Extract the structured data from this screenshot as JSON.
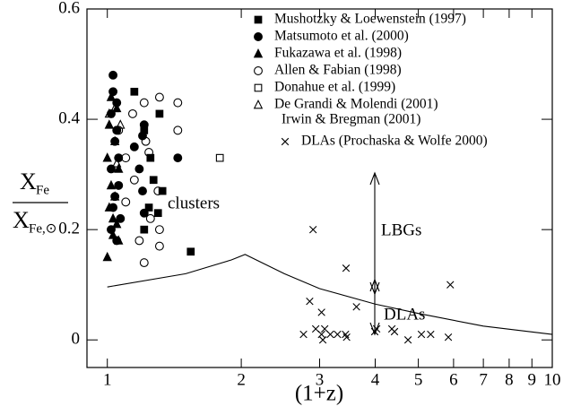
{
  "chart_data": {
    "type": "scatter",
    "xlabel": "(1+z)",
    "ylabel": {
      "numerator": "X",
      "numerator_sub": "Fe",
      "denominator": "X",
      "denominator_sub": "Fe,⊙"
    },
    "xscale": "log",
    "xlim": [
      0.9,
      10
    ],
    "ylim": [
      -0.05,
      0.6
    ],
    "xticks": [
      1,
      2,
      3,
      4,
      5,
      6,
      7,
      8,
      9,
      10
    ],
    "yticks": [
      0,
      0.2,
      0.4,
      0.6
    ],
    "legend": "upper right",
    "series": [
      {
        "name": "Mushotzky & Loewenstein (1997)",
        "marker": "square",
        "filled": true,
        "x": [
          1.15,
          1.31,
          1.21,
          1.25,
          1.33,
          1.3,
          1.24,
          1.54,
          1.27,
          1.21
        ],
        "values": [
          0.45,
          0.41,
          0.38,
          0.33,
          0.27,
          0.23,
          0.24,
          0.16,
          0.29,
          0.2
        ]
      },
      {
        "name": "Matsumoto et al. (2000)",
        "marker": "circle",
        "filled": true,
        "x": [
          1.03,
          1.03,
          1.05,
          1.02,
          1.05,
          1.04,
          1.06,
          1.02,
          1.06,
          1.04,
          1.03,
          1.07,
          1.02,
          1.05,
          1.15,
          1.18,
          1.2,
          1.21,
          1.21,
          1.2,
          1.44
        ],
        "values": [
          0.48,
          0.45,
          0.43,
          0.41,
          0.38,
          0.36,
          0.33,
          0.31,
          0.28,
          0.26,
          0.24,
          0.22,
          0.2,
          0.18,
          0.35,
          0.31,
          0.27,
          0.23,
          0.39,
          0.37,
          0.33
        ]
      },
      {
        "name": "Fukazawa et al. (1998)",
        "marker": "triangle",
        "filled": true,
        "x": [
          1.0,
          1.03,
          1.05,
          1.01,
          1.04,
          1.02,
          1.06,
          1.0,
          1.04,
          1.01,
          1.05,
          1.02,
          1.06,
          1.03
        ],
        "values": [
          0.15,
          0.19,
          0.21,
          0.24,
          0.26,
          0.28,
          0.31,
          0.33,
          0.36,
          0.39,
          0.42,
          0.44,
          0.18,
          0.22
        ]
      },
      {
        "name": "Allen & Fabian (1998)",
        "marker": "circle",
        "filled": false,
        "x": [
          1.31,
          1.44,
          1.44,
          1.21,
          1.14,
          1.22,
          1.24,
          1.3,
          1.25,
          1.31,
          1.21,
          1.31,
          1.1,
          1.06,
          1.15,
          1.1,
          1.18
        ],
        "values": [
          0.44,
          0.43,
          0.38,
          0.43,
          0.41,
          0.36,
          0.34,
          0.27,
          0.22,
          0.2,
          0.14,
          0.17,
          0.33,
          0.38,
          0.29,
          0.25,
          0.18
        ]
      },
      {
        "name": "Donahue et al. (1999)",
        "marker": "square",
        "filled": false,
        "x": [
          1.79
        ],
        "values": [
          0.33
        ]
      },
      {
        "name": "De Grandi & Molendi (2001)",
        "marker": "triangle",
        "filled": false,
        "x": [
          1.01,
          1.04,
          1.07,
          1.05
        ],
        "values": [
          0.41,
          0.42,
          0.39,
          0.32
        ]
      },
      {
        "name": "Irwin & Bregman (2001)",
        "marker": "none",
        "filled": false,
        "x": [],
        "values": []
      },
      {
        "name": "DLAs (Prochaska & Wolfe 2000)",
        "marker": "cross",
        "filled": false,
        "x": [
          2.9,
          3.44,
          2.85,
          3.03,
          3.63,
          5.9,
          2.76,
          2.94,
          3.03,
          3.08,
          3.17,
          3.05,
          3.29,
          3.43,
          3.45,
          4.03,
          4.36,
          4.42,
          4.74,
          5.08,
          5.33,
          5.84,
          3.99
        ],
        "values": [
          0.2,
          0.13,
          0.07,
          0.05,
          0.06,
          0.1,
          0.01,
          0.02,
          0.01,
          0.02,
          0.01,
          0.0,
          0.01,
          0.01,
          0.005,
          0.02,
          0.02,
          0.015,
          0.0,
          0.01,
          0.01,
          0.005,
          0.015
        ]
      }
    ],
    "curve": {
      "x": [
        1,
        1.5,
        1.9,
        2.04,
        2.5,
        3,
        4,
        5,
        7,
        10
      ],
      "values": [
        0.096,
        0.12,
        0.145,
        0.155,
        0.12,
        0.093,
        0.065,
        0.048,
        0.025,
        0.01
      ]
    },
    "annotations": [
      "clusters",
      "LBGs",
      "DLAs"
    ]
  }
}
